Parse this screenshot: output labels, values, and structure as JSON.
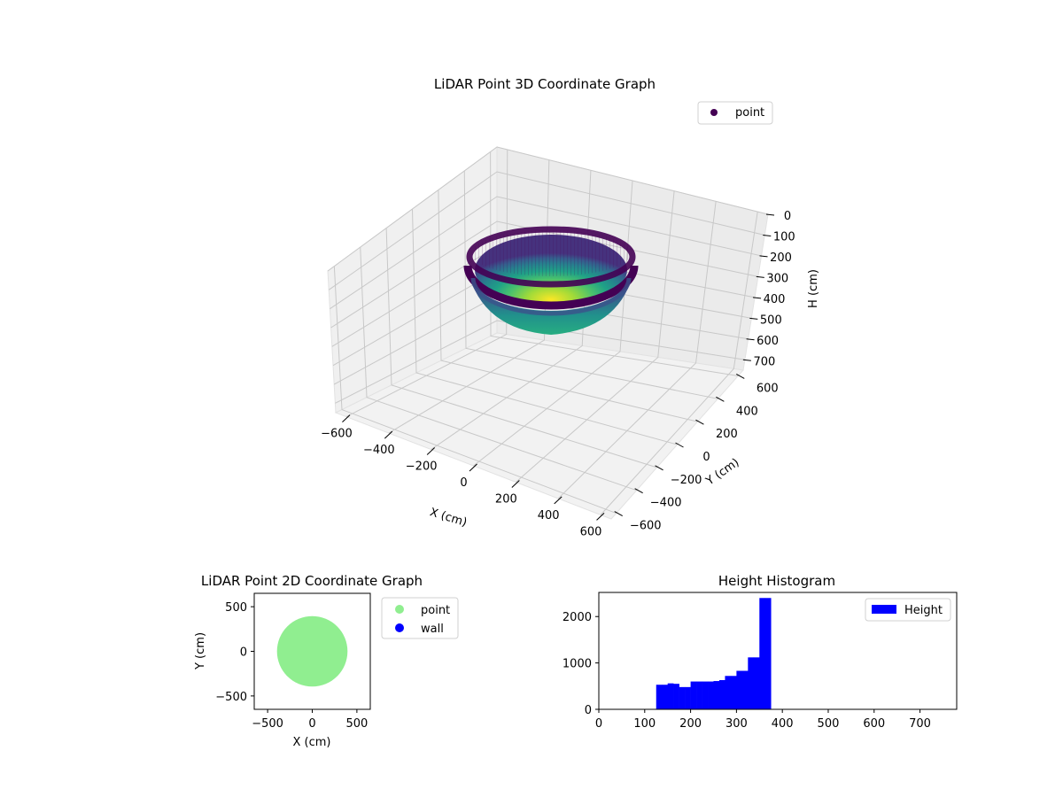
{
  "chart_data": [
    {
      "type": "scatter3d",
      "title": "LiDAR Point 3D Coordinate Graph",
      "xlabel": "X (cm)",
      "ylabel": "Y (cm)",
      "zlabel": "H (cm)",
      "xlim": [
        -650,
        650
      ],
      "ylim": [
        -650,
        650
      ],
      "zlim": [
        750,
        0
      ],
      "zinverted": true,
      "xticks": [
        "−600",
        "−400",
        "−200",
        "0",
        "200",
        "400",
        "600"
      ],
      "yticks": [
        "−600",
        "−400",
        "−200",
        "0",
        "200",
        "400",
        "600"
      ],
      "zticks": [
        "0",
        "100",
        "200",
        "300",
        "400",
        "500",
        "600",
        "700"
      ],
      "grid": true,
      "colormap": "viridis",
      "legend": {
        "placement": "upper-right",
        "entries": [
          "point"
        ]
      },
      "series": [
        {
          "name": "point",
          "shape": "hemisphere",
          "center": [
            0,
            0
          ],
          "radius": 400,
          "height_range": [
            125,
            375
          ],
          "color": "#440154"
        }
      ]
    },
    {
      "type": "scatter",
      "title": "LiDAR Point 2D Coordinate Graph",
      "xlabel": "X (cm)",
      "ylabel": "Y (cm)",
      "xlim": [
        -650,
        650
      ],
      "ylim": [
        -650,
        650
      ],
      "xticks": [
        "−500",
        "0",
        "500"
      ],
      "yticks": [
        "500",
        "0",
        "−500"
      ],
      "legend": {
        "placement": "outside-right",
        "entries": [
          "point",
          "wall"
        ]
      },
      "series": [
        {
          "name": "point",
          "color": "#90ee90",
          "shape": "disc",
          "center": [
            0,
            0
          ],
          "radius": 395
        },
        {
          "name": "wall",
          "color": "#0000ff",
          "points": []
        }
      ]
    },
    {
      "type": "bar",
      "title": "Height Histogram",
      "xlim": [
        0,
        780
      ],
      "ylim": [
        0,
        2520
      ],
      "xticks": [
        "0",
        "100",
        "200",
        "300",
        "400",
        "500",
        "600",
        "700"
      ],
      "yticks": [
        "0",
        "1000",
        "2000"
      ],
      "legend": {
        "placement": "upper-right",
        "entries": [
          "Height"
        ]
      },
      "bin_width": 12.5,
      "series": [
        {
          "name": "Height",
          "color": "#0000ff",
          "bins": [
            {
              "x0": 125,
              "value": 530
            },
            {
              "x0": 137.5,
              "value": 530
            },
            {
              "x0": 150,
              "value": 560
            },
            {
              "x0": 162.5,
              "value": 550
            },
            {
              "x0": 175,
              "value": 480
            },
            {
              "x0": 187.5,
              "value": 480
            },
            {
              "x0": 200,
              "value": 600
            },
            {
              "x0": 212.5,
              "value": 600
            },
            {
              "x0": 225,
              "value": 600
            },
            {
              "x0": 237.5,
              "value": 600
            },
            {
              "x0": 250,
              "value": 610
            },
            {
              "x0": 262.5,
              "value": 630
            },
            {
              "x0": 275,
              "value": 720
            },
            {
              "x0": 287.5,
              "value": 720
            },
            {
              "x0": 300,
              "value": 830
            },
            {
              "x0": 312.5,
              "value": 830
            },
            {
              "x0": 325,
              "value": 1120
            },
            {
              "x0": 337.5,
              "value": 1120
            },
            {
              "x0": 350,
              "value": 2400
            },
            {
              "x0": 362.5,
              "value": 2400
            }
          ]
        }
      ]
    }
  ]
}
